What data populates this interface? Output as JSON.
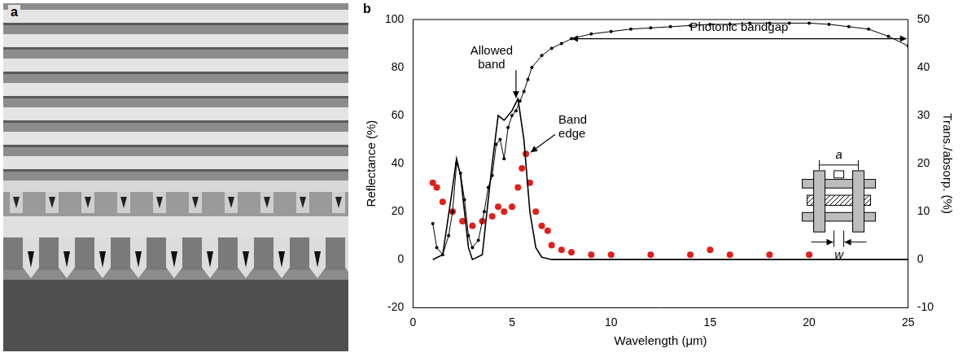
{
  "image_panel": {
    "label": "a"
  },
  "chart_data": {
    "label": "b",
    "type": "scatter",
    "x_label": "Wavelength (μm)",
    "y_label": "Reflectance (%)",
    "y2_label": "Trans./absorp. (%)",
    "xlim": [
      0,
      25
    ],
    "xticks": [
      0,
      5,
      10,
      15,
      20,
      25
    ],
    "ylim": [
      -20,
      100
    ],
    "yticks": [
      -20,
      0,
      20,
      40,
      60,
      80,
      100
    ],
    "y2lim": [
      -10,
      50
    ],
    "y2ticks": [
      -10,
      0,
      10,
      20,
      30,
      40,
      50
    ],
    "grid": false,
    "series": [
      {
        "color": "#000000",
        "marker": "circle",
        "line_style": "solid",
        "axis": "y",
        "x": [
          1.0,
          1.2,
          1.5,
          1.8,
          2.0,
          2.2,
          2.4,
          2.6,
          2.8,
          3.0,
          3.3,
          3.6,
          3.8,
          4.0,
          4.2,
          4.4,
          4.6,
          4.8,
          5.0,
          5.2,
          5.4,
          5.6,
          5.8,
          6.0,
          6.5,
          7.0,
          7.5,
          8,
          9,
          10,
          11,
          12,
          13,
          14,
          15,
          16,
          17,
          18,
          19,
          20,
          21,
          22,
          23,
          24,
          25
        ],
        "values": [
          15,
          5,
          2,
          10,
          20,
          40,
          36,
          25,
          10,
          5,
          8,
          20,
          30,
          35,
          48,
          50,
          42,
          55,
          60,
          62,
          66,
          70,
          75,
          80,
          85,
          88,
          90,
          92,
          94,
          95,
          96,
          96.5,
          97,
          97.5,
          98,
          98,
          98.5,
          98.5,
          98.5,
          98.5,
          98,
          97,
          96,
          93,
          89
        ]
      },
      {
        "color": "#000000",
        "marker": "none",
        "line_style": "solid",
        "axis": "y2",
        "x": [
          1.0,
          1.5,
          2.0,
          2.2,
          2.4,
          2.6,
          2.8,
          3.0,
          3.5,
          3.8,
          4.0,
          4.3,
          4.6,
          5.0,
          5.3,
          5.6,
          5.9,
          6.2,
          6.5,
          7,
          10,
          15,
          20,
          25
        ],
        "values": [
          0,
          1,
          15,
          21,
          17.5,
          10,
          2.5,
          0,
          1,
          12.5,
          20,
          30,
          29,
          31,
          33.5,
          25,
          10,
          2.5,
          0.5,
          0,
          0,
          0,
          0,
          0
        ]
      },
      {
        "color": "#e0201c",
        "marker": "circle",
        "line_style": "none",
        "axis": "y2",
        "x": [
          1.0,
          1.2,
          1.5,
          2.0,
          2.5,
          3.0,
          3.5,
          4.0,
          4.3,
          4.6,
          5.0,
          5.3,
          5.5,
          5.7,
          5.9,
          6.2,
          6.5,
          6.8,
          7.0,
          7.5,
          8,
          9,
          10,
          12,
          14,
          15,
          16,
          18,
          20
        ],
        "values": [
          16,
          15,
          12,
          10,
          8,
          7,
          8,
          9,
          11,
          10,
          11,
          15,
          19,
          22,
          16,
          10,
          7,
          6,
          3,
          2,
          1.5,
          1,
          1,
          1,
          1,
          2,
          1,
          1,
          1
        ]
      }
    ],
    "annotations": [
      {
        "text": "Allowed band",
        "x": 5.2,
        "y": 66,
        "arrow": "down"
      },
      {
        "text": "Band edge",
        "x": 5.7,
        "y": 44,
        "arrow": "left"
      },
      {
        "text": "Photonic bandgap",
        "x": [
          8,
          25
        ],
        "y": 92,
        "arrow": "both"
      }
    ],
    "inset_labels": [
      "a",
      "w"
    ]
  }
}
